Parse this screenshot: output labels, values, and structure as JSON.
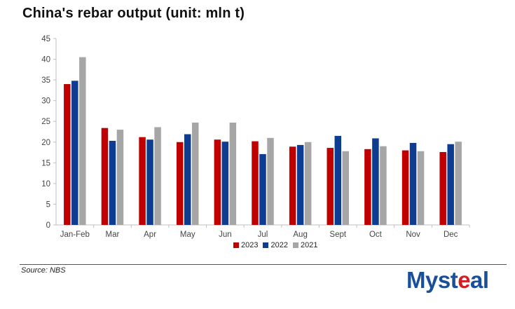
{
  "title": "China's rebar output (unit: mln t)",
  "source": "Source: NBS",
  "logo": {
    "text_pre": "Myst",
    "text_mid": "e",
    "text_post": "al",
    "alt": "Mysteel"
  },
  "colors": {
    "2023": "#c00000",
    "2022": "#0d3c91",
    "2021": "#a6a6a6"
  },
  "chart_data": {
    "type": "bar",
    "title": "China's rebar output (unit: mln t)",
    "categories": [
      "Jan-Feb",
      "Mar",
      "Apr",
      "May",
      "Jun",
      "Jul",
      "Aug",
      "Sept",
      "Oct",
      "Nov",
      "Dec"
    ],
    "series": [
      {
        "name": "2023",
        "color": "#c00000",
        "values": [
          34.0,
          23.4,
          21.2,
          20.0,
          20.6,
          20.2,
          18.9,
          18.6,
          18.3,
          18.0,
          17.6
        ]
      },
      {
        "name": "2022",
        "color": "#0d3c91",
        "values": [
          34.8,
          20.3,
          20.6,
          21.9,
          20.1,
          17.1,
          19.3,
          21.5,
          20.9,
          19.8,
          19.5
        ]
      },
      {
        "name": "2021",
        "color": "#a6a6a6",
        "values": [
          40.5,
          23.0,
          23.6,
          24.7,
          24.7,
          21.0,
          20.0,
          17.8,
          19.0,
          17.8,
          20.1
        ]
      }
    ],
    "ylim": [
      0,
      45
    ],
    "yticks": [
      0,
      5,
      10,
      15,
      20,
      25,
      30,
      35,
      40,
      45
    ],
    "xlabel": "",
    "ylabel": "",
    "legend_position": "bottom-center",
    "grid": false
  }
}
